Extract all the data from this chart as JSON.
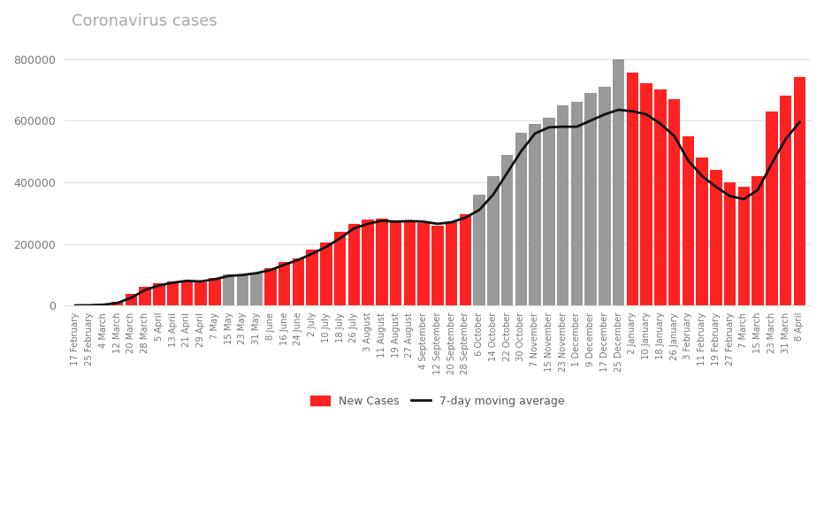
{
  "title": "Coronavirus cases",
  "title_color": "#aaaaaa",
  "background_color": "#ffffff",
  "bar_color_red": "#ff2222",
  "bar_color_gray": "#999999",
  "line_color": "#111111",
  "ylim": [
    0,
    860000
  ],
  "yticks": [
    0,
    200000,
    400000,
    600000,
    800000
  ],
  "legend_labels": [
    "New Cases",
    "7-day moving average"
  ],
  "x_labels": [
    "17 February",
    "25 February",
    "4 March",
    "12 March",
    "20 March",
    "28 March",
    "5 April",
    "13 April",
    "21 April",
    "29 April",
    "7 May",
    "15 May",
    "23 May",
    "31 May",
    "8 June",
    "16 June",
    "24 June",
    "2 July",
    "10 July",
    "18 July",
    "26 July",
    "3 August",
    "11 August",
    "19 August",
    "27 August",
    "4 September",
    "12 September",
    "20 September",
    "28 September",
    "6 October",
    "14 October",
    "22 October",
    "30 October",
    "7 November",
    "15 November",
    "23 November",
    "1 December",
    "9 December",
    "17 December",
    "25 December",
    "2 January",
    "10 January",
    "18 January",
    "26 January",
    "3 February",
    "11 February",
    "19 February",
    "27 February",
    "7 March",
    "15 March",
    "23 March",
    "31 March",
    "8 April"
  ],
  "bar_values": [
    300,
    800,
    4000,
    12000,
    38000,
    62000,
    72000,
    78000,
    82000,
    75000,
    90000,
    102000,
    98000,
    105000,
    120000,
    140000,
    152000,
    180000,
    205000,
    238000,
    265000,
    278000,
    282000,
    272000,
    275000,
    268000,
    258000,
    270000,
    295000,
    360000,
    420000,
    490000,
    560000,
    590000,
    610000,
    650000,
    660000,
    690000,
    710000,
    800000,
    755000,
    720000,
    700000,
    670000,
    550000,
    480000,
    440000,
    400000,
    385000,
    420000,
    630000,
    680000,
    740000
  ],
  "moving_avg": [
    300,
    700,
    2500,
    8000,
    25000,
    50000,
    65000,
    74000,
    80000,
    78000,
    85000,
    96000,
    99000,
    105000,
    115000,
    132000,
    148000,
    168000,
    190000,
    218000,
    250000,
    265000,
    275000,
    272000,
    274000,
    272000,
    265000,
    270000,
    285000,
    310000,
    360000,
    430000,
    500000,
    558000,
    578000,
    580000,
    580000,
    600000,
    620000,
    635000,
    630000,
    620000,
    590000,
    550000,
    470000,
    420000,
    385000,
    355000,
    345000,
    375000,
    460000,
    540000,
    595000
  ],
  "red_indices": [
    0,
    1,
    2,
    3,
    4,
    5,
    6,
    7,
    8,
    9,
    10,
    14,
    15,
    16,
    17,
    18,
    19,
    20,
    21,
    22,
    23,
    24,
    25,
    26,
    27,
    28,
    40,
    41,
    42,
    43,
    44,
    45,
    46,
    47,
    48,
    49,
    50,
    51,
    52
  ]
}
